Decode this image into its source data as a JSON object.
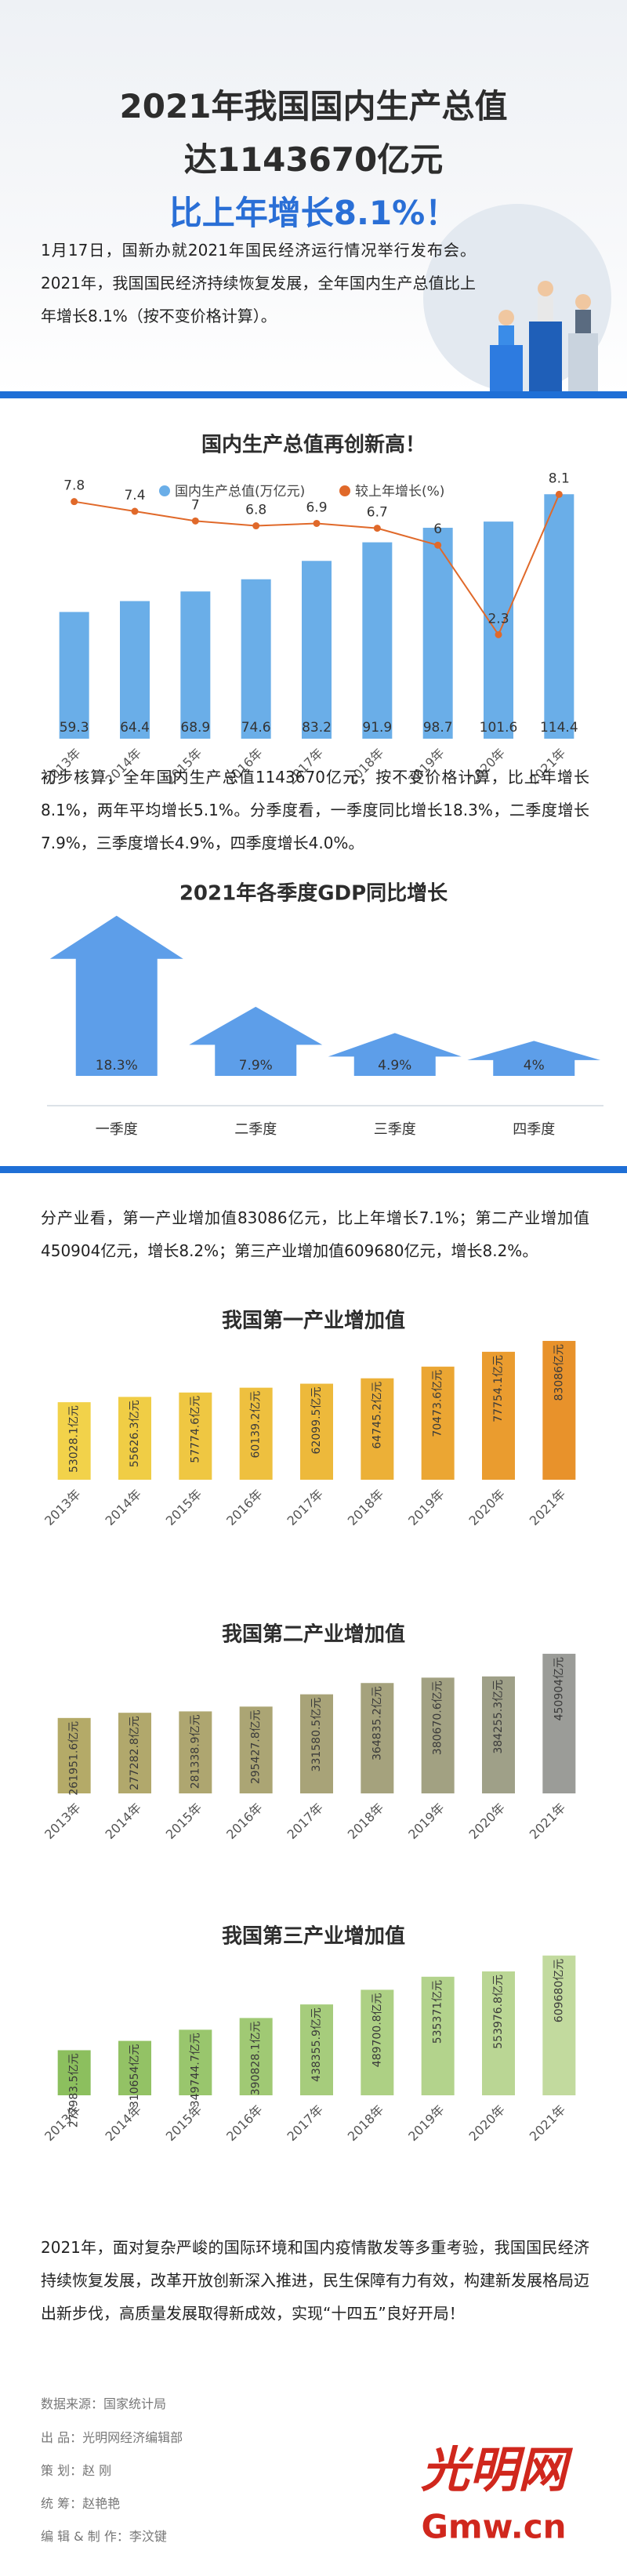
{
  "header": {
    "title_lines": [
      "2021年我国国内生产总值",
      "达1143670亿元",
      "比上年增长8.1%！"
    ]
  },
  "paragraphs": [
    "1月17日，国新办就2021年国民经济运行情况举行发布会。2021年，我国国民经济持续恢复发展，全年国内生产总值比上年增长8.1%（按不变价格计算）。",
    "初步核算，全年国内生产总值1143670亿元，按不变价格计算，比上年增长8.1%，两年平均增长5.1%。分季度看，一季度同比增长18.3%，二季度增长7.9%，三季度增长4.9%，四季度增长4.0%。",
    "分产业看，第一产业增加值83086亿元，比上年增长7.1%；第二产业增加值450904亿元，增长8.2%；第三产业增加值609680亿元，增长8.2%。",
    "2021年，面对复杂严峻的国际环境和国内疫情散发等多重考验，我国国民经济持续恢复发展，改革开放创新深入推进，民生保障有力有效，构建新发展格局迈出新步伐，高质量发展取得新成效，实现“十四五”良好开局！"
  ],
  "chart_data": [
    {
      "type": "combo",
      "title": "国内生产总值再创新高！",
      "categories": [
        "2013年",
        "2014年",
        "2015年",
        "2016年",
        "2017年",
        "2018年",
        "2019年",
        "2020年",
        "2021年"
      ],
      "series": [
        {
          "name": "国内生产总值(万亿元)",
          "color": "#6aaee8",
          "values": [
            59.3,
            64.4,
            68.9,
            74.6,
            83.2,
            91.9,
            98.7,
            101.6,
            114.4
          ]
        },
        {
          "name": "较上年增长(%)",
          "color": "#e0692a",
          "values": [
            7.8,
            7.4,
            7,
            6.8,
            6.9,
            6.7,
            6,
            2.3,
            8.1
          ],
          "axis": "y2"
        }
      ],
      "ylim": [
        0,
        120
      ],
      "y2lim": [
        -2,
        8.6
      ]
    },
    {
      "type": "arrow",
      "title": "2021年各季度GDP同比增长",
      "categories": [
        "一季度",
        "二季度",
        "三季度",
        "四季度"
      ],
      "values": [
        18.3,
        7.9,
        4.9,
        4
      ],
      "value_labels": [
        "18.3%",
        "7.9%",
        "4.9%",
        "4%"
      ],
      "color": "#5d9ee9",
      "ylim": [
        0,
        19
      ]
    },
    {
      "type": "bar",
      "title": "我国第一产业增加值",
      "categories": [
        "2013年",
        "2014年",
        "2015年",
        "2016年",
        "2017年",
        "2018年",
        "2019年",
        "2020年",
        "2021年"
      ],
      "values": [
        53028.1,
        55626.3,
        57774.6,
        60139.2,
        62099.5,
        64745.2,
        70473.6,
        77754.1,
        83086
      ],
      "value_labels": [
        "53028.1亿元",
        "55626.3亿元",
        "57774.6亿元",
        "60139.2亿元",
        "62099.5亿元",
        "64745.2亿元",
        "70473.6亿元",
        "77754.1亿元",
        "83086亿元"
      ],
      "colors": [
        "#f2d24a",
        "#f0cd45",
        "#efc742",
        "#eec03f",
        "#edb93b",
        "#ecb037",
        "#eba633",
        "#ea9c2f",
        "#e8922b"
      ],
      "ylim": [
        15000,
        85000
      ]
    },
    {
      "type": "bar",
      "title": "我国第二产业增加值",
      "categories": [
        "2013年",
        "2014年",
        "2015年",
        "2016年",
        "2017年",
        "2018年",
        "2019年",
        "2020年",
        "2021年"
      ],
      "values": [
        261951.6,
        277282.8,
        281338.9,
        295427.8,
        331580.5,
        364835.2,
        380670.6,
        384255.3,
        450904
      ],
      "value_labels": [
        "261951.6亿元",
        "277282.8亿元",
        "281338.9亿元",
        "295427.8亿元",
        "331580.5亿元",
        "364835.2亿元",
        "380670.6亿元",
        "384255.3亿元",
        "450904亿元"
      ],
      "colors": [
        "#b4aa68",
        "#b1a86c",
        "#aea670",
        "#aba574",
        "#a8a378",
        "#a5a27d",
        "#a2a182",
        "#9fa088",
        "#9b9c98"
      ],
      "ylim": [
        40000,
        460000
      ]
    },
    {
      "type": "bar",
      "title": "我国第三产业增加值",
      "categories": [
        "2013年",
        "2014年",
        "2015年",
        "2016年",
        "2017年",
        "2018年",
        "2019年",
        "2020年",
        "2021年"
      ],
      "values": [
        277983.5,
        310654,
        349744.7,
        390828.1,
        438355.9,
        489700.8,
        535371,
        553976.8,
        609680
      ],
      "value_labels": [
        "277983.5亿元",
        "310654亿元",
        "349744.7亿元",
        "390828.1亿元",
        "438355.9亿元",
        "489700.8亿元",
        "535371亿元",
        "553976.8亿元",
        "609680亿元"
      ],
      "colors": [
        "#8cbf5e",
        "#93c265",
        "#99c66d",
        "#a0c974",
        "#a6cc7c",
        "#add084",
        "#b3d38c",
        "#bad694",
        "#c2da9e"
      ],
      "ylim": [
        120000,
        620000
      ]
    }
  ],
  "credits": [
    "数据来源：国家统计局",
    "出 品：光明网经济编辑部",
    "策 划：赵 刚",
    "统 筹：赵艳艳",
    "编 辑 & 制 作：李汶键"
  ],
  "logo": {
    "text": "光明网",
    "domain": "Gmw.cn"
  }
}
